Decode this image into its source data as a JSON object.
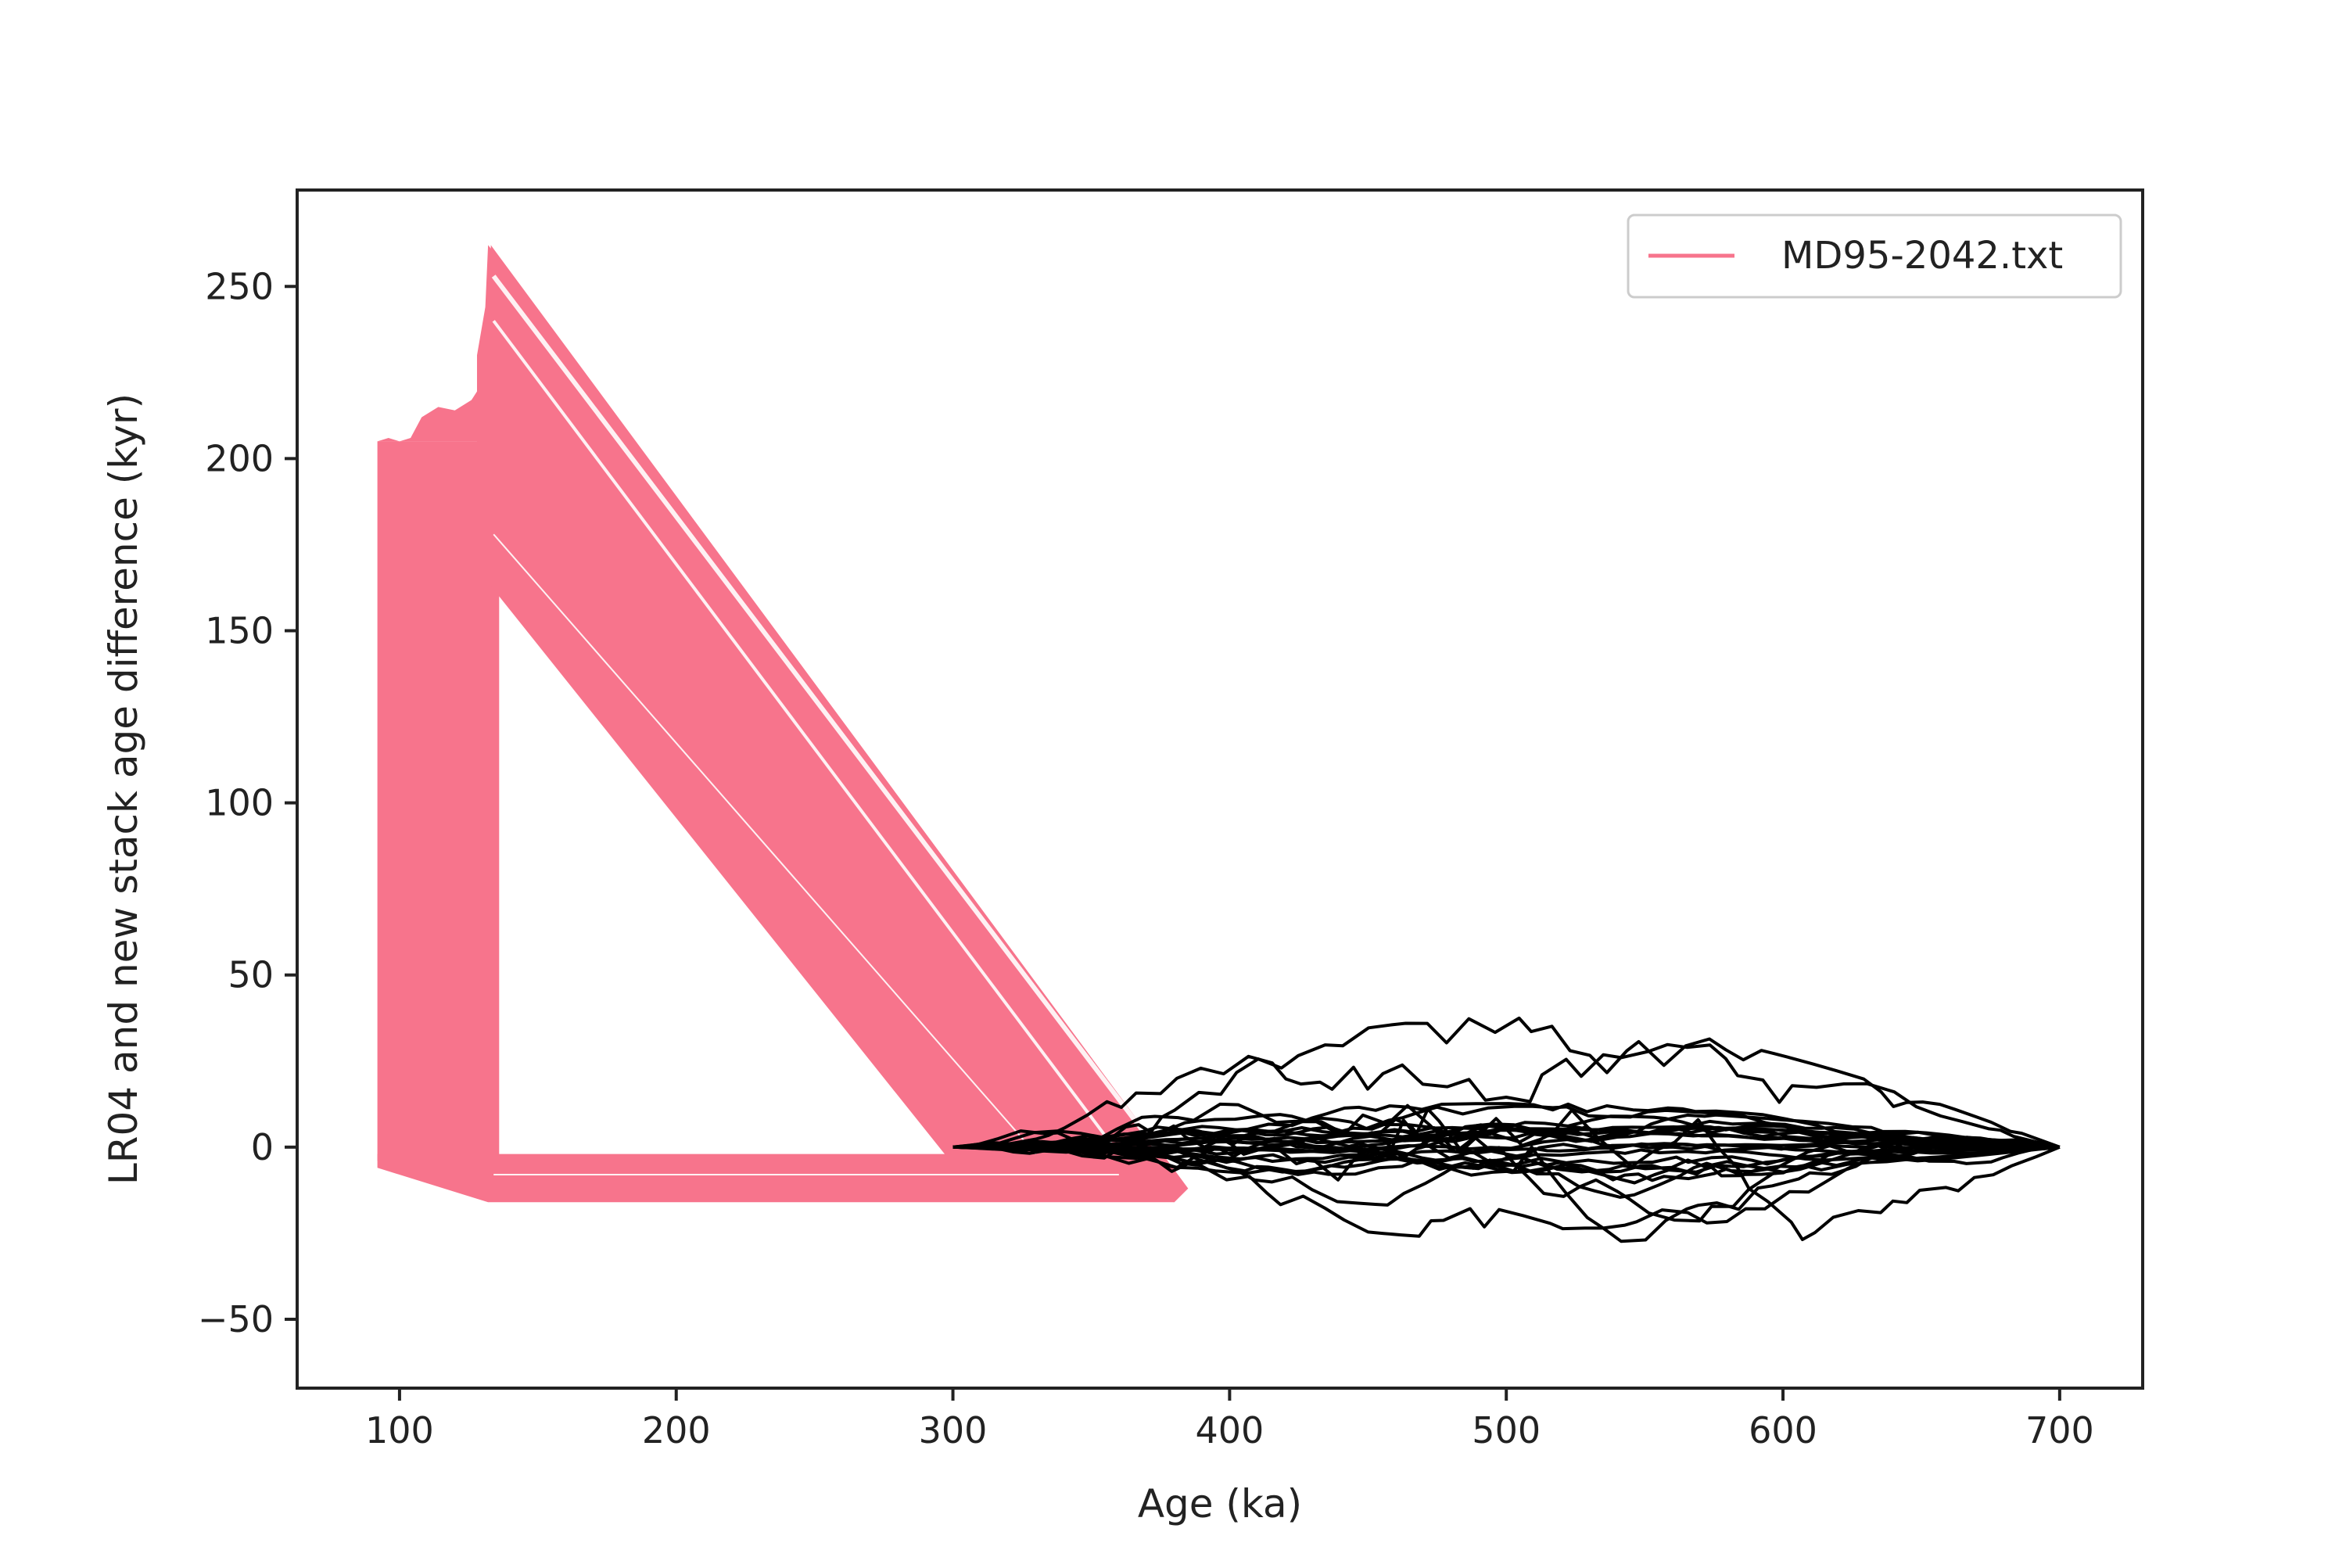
{
  "colors": {
    "pink": "#f7748c",
    "black": "#000000",
    "axis": "#222222"
  },
  "chart_data": {
    "type": "line",
    "title": "",
    "xlabel": "Age (ka)",
    "ylabel": "LR04 and new stack age difference (kyr)",
    "xlim": [
      63,
      730
    ],
    "ylim": [
      -70,
      278
    ],
    "xticks": [
      100,
      200,
      300,
      400,
      500,
      600,
      700
    ],
    "yticks": [
      -50,
      0,
      50,
      100,
      150,
      200,
      250
    ],
    "grid": false,
    "legend": {
      "position": "top-right",
      "entries": [
        {
          "label": "MD95-2042.txt",
          "color": "#f7748c"
        }
      ]
    },
    "series": [
      {
        "name": "MD95-2042.txt",
        "color": "#f7748c",
        "kind": "ensemble-band",
        "description_points": {
          "left_block_x": [
            92,
            132
          ],
          "left_block_y": [
            -4,
            205
          ],
          "peak": [
            132,
            262
          ],
          "diagonal_outer": [
            [
              133,
              260
            ],
            [
              385,
              -12
            ]
          ],
          "diagonal_inner": [
            [
              133,
              163
            ],
            [
              298,
              -3
            ]
          ],
          "bottom_band_y": [
            -16,
            -4
          ],
          "bottom_band_x": [
            92,
            385
          ]
        }
      },
      {
        "name": "",
        "color": "#000000",
        "kind": "ensemble-lines",
        "x_range": [
          300,
          700
        ]
      }
    ]
  }
}
